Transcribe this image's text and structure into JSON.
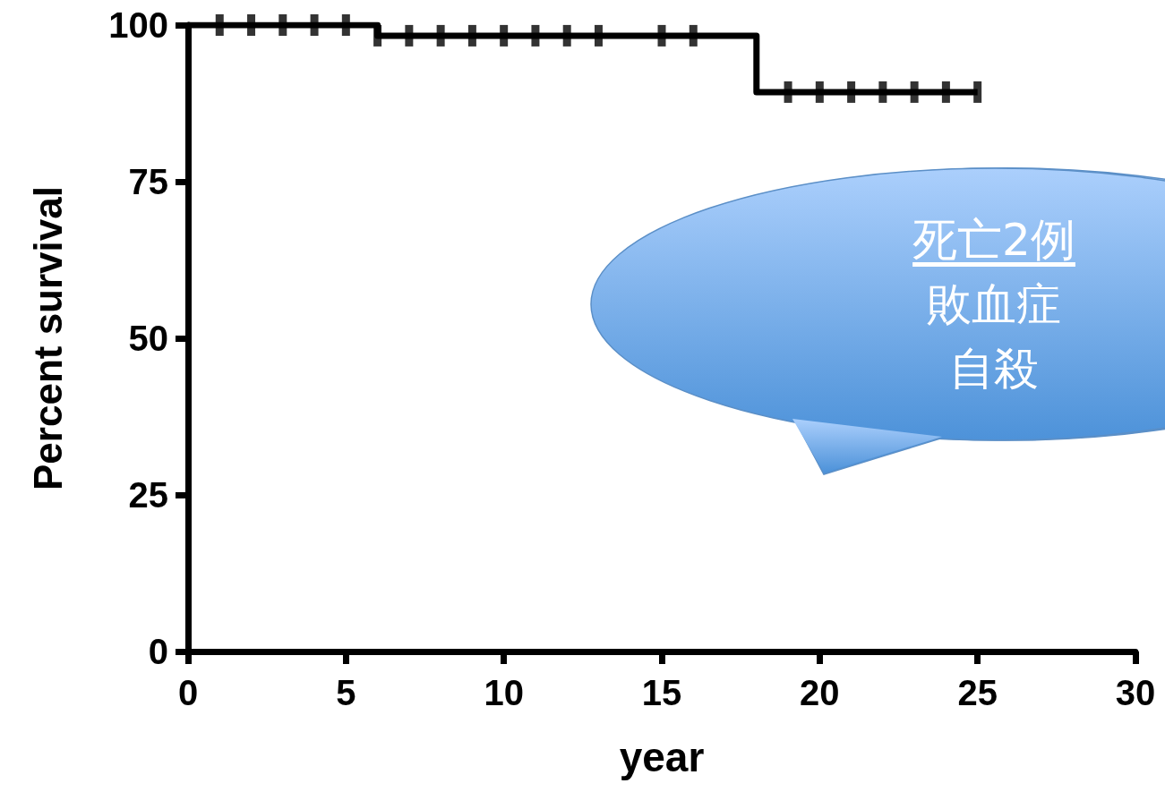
{
  "chart_data": {
    "type": "step",
    "xlabel": "year",
    "ylabel": "Percent survival",
    "xlim": [
      0,
      30
    ],
    "xticks": [
      0,
      5,
      10,
      15,
      20,
      25,
      30
    ],
    "ylim": [
      0,
      100
    ],
    "yticks": [
      0,
      25,
      50,
      75,
      100
    ],
    "grid": false,
    "series": [
      {
        "color": "#000000",
        "x": [
          0,
          6,
          18,
          25
        ],
        "values": [
          100,
          98.3,
          89.3,
          89.3
        ]
      },
      {
        "type": "scatter",
        "color": "#000000",
        "x": [
          1,
          2,
          3,
          4,
          5,
          6,
          7,
          8,
          9,
          10,
          11,
          12,
          13,
          15,
          16,
          19,
          20,
          21,
          22,
          23,
          24,
          25
        ],
        "values": [
          100,
          100,
          100,
          100,
          100,
          98.3,
          98.3,
          98.3,
          98.3,
          98.3,
          98.3,
          98.3,
          98.3,
          98.3,
          98.3,
          89.3,
          89.3,
          89.3,
          89.3,
          89.3,
          89.3,
          89.3
        ]
      }
    ],
    "annotations": [
      "死亡2例",
      "敗血症",
      "自殺"
    ]
  }
}
